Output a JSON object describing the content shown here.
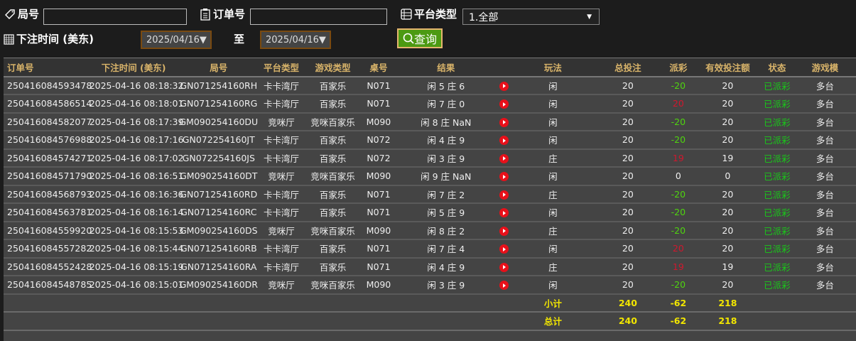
{
  "filters": {
    "round_label": "局号",
    "round_value": "",
    "order_label": "订单号",
    "order_value": "",
    "platform_label": "平台类型",
    "platform_value": "1.全部",
    "time_label": "下注时间 (美东)",
    "date_from": "2025/04/16▼",
    "to_label": "至",
    "date_to": "2025/04/16▼",
    "search_label": "查询"
  },
  "columns": [
    "订单号",
    "下注时间 (美东)",
    "局号",
    "平台类型",
    "游戏类型",
    "桌号",
    "结果",
    "",
    "玩法",
    "总投注",
    "派彩",
    "有效投注额",
    "状态",
    "游戏模"
  ],
  "rows": [
    {
      "order": "250416084593478",
      "time": "2025-04-16 08:18:32",
      "round": "GN071254160RH",
      "platform": "卡卡湾厅",
      "game": "百家乐",
      "table": "N071",
      "result": "闲 5 庄 6",
      "play": "闲",
      "bet": "20",
      "payout": "-20",
      "payout_color": "neg",
      "valid": "20",
      "status": "已派彩",
      "mode": "多台"
    },
    {
      "order": "250416084586514",
      "time": "2025-04-16 08:18:01",
      "round": "GN071254160RG",
      "platform": "卡卡湾厅",
      "game": "百家乐",
      "table": "N071",
      "result": "闲 7 庄 0",
      "play": "闲",
      "bet": "20",
      "payout": "20",
      "payout_color": "pos",
      "valid": "20",
      "status": "已派彩",
      "mode": "多台"
    },
    {
      "order": "250416084582077",
      "time": "2025-04-16 08:17:39",
      "round": "GM090254160DU",
      "platform": "竞咪厅",
      "game": "竞咪百家乐",
      "table": "M090",
      "result": "闲 8 庄 NaN",
      "play": "闲",
      "bet": "20",
      "payout": "-20",
      "payout_color": "neg",
      "valid": "20",
      "status": "已派彩",
      "mode": "多台"
    },
    {
      "order": "250416084576988",
      "time": "2025-04-16 08:17:16",
      "round": "GN072254160JT",
      "platform": "卡卡湾厅",
      "game": "百家乐",
      "table": "N072",
      "result": "闲 4 庄 9",
      "play": "闲",
      "bet": "20",
      "payout": "-20",
      "payout_color": "neg",
      "valid": "20",
      "status": "已派彩",
      "mode": "多台"
    },
    {
      "order": "250416084574271",
      "time": "2025-04-16 08:17:02",
      "round": "GN072254160JS",
      "platform": "卡卡湾厅",
      "game": "百家乐",
      "table": "N072",
      "result": "闲 3 庄 9",
      "play": "庄",
      "bet": "20",
      "payout": "19",
      "payout_color": "pos",
      "valid": "19",
      "status": "已派彩",
      "mode": "多台"
    },
    {
      "order": "250416084571790",
      "time": "2025-04-16 08:16:51",
      "round": "GM090254160DT",
      "platform": "竞咪厅",
      "game": "竞咪百家乐",
      "table": "M090",
      "result": "闲 9 庄 NaN",
      "play": "闲",
      "bet": "20",
      "payout": "0",
      "payout_color": "zero",
      "valid": "0",
      "status": "已派彩",
      "mode": "多台"
    },
    {
      "order": "250416084568793",
      "time": "2025-04-16 08:16:36",
      "round": "GN071254160RD",
      "platform": "卡卡湾厅",
      "game": "百家乐",
      "table": "N071",
      "result": "闲 7 庄 2",
      "play": "庄",
      "bet": "20",
      "payout": "-20",
      "payout_color": "neg",
      "valid": "20",
      "status": "已派彩",
      "mode": "多台"
    },
    {
      "order": "250416084563781",
      "time": "2025-04-16 08:16:14",
      "round": "GN071254160RC",
      "platform": "卡卡湾厅",
      "game": "百家乐",
      "table": "N071",
      "result": "闲 5 庄 9",
      "play": "闲",
      "bet": "20",
      "payout": "-20",
      "payout_color": "neg",
      "valid": "20",
      "status": "已派彩",
      "mode": "多台"
    },
    {
      "order": "250416084559920",
      "time": "2025-04-16 08:15:53",
      "round": "GM090254160DS",
      "platform": "竞咪厅",
      "game": "竞咪百家乐",
      "table": "M090",
      "result": "闲 8 庄 2",
      "play": "庄",
      "bet": "20",
      "payout": "-20",
      "payout_color": "neg",
      "valid": "20",
      "status": "已派彩",
      "mode": "多台"
    },
    {
      "order": "250416084557282",
      "time": "2025-04-16 08:15:44",
      "round": "GN071254160RB",
      "platform": "卡卡湾厅",
      "game": "百家乐",
      "table": "N071",
      "result": "闲 7 庄 4",
      "play": "闲",
      "bet": "20",
      "payout": "20",
      "payout_color": "pos",
      "valid": "20",
      "status": "已派彩",
      "mode": "多台"
    },
    {
      "order": "250416084552428",
      "time": "2025-04-16 08:15:19",
      "round": "GN071254160RA",
      "platform": "卡卡湾厅",
      "game": "百家乐",
      "table": "N071",
      "result": "闲 4 庄 9",
      "play": "庄",
      "bet": "20",
      "payout": "19",
      "payout_color": "pos",
      "valid": "19",
      "status": "已派彩",
      "mode": "多台"
    },
    {
      "order": "250416084548785",
      "time": "2025-04-16 08:15:01",
      "round": "GM090254160DR",
      "platform": "竞咪厅",
      "game": "竞咪百家乐",
      "table": "M090",
      "result": "闲 3 庄 9",
      "play": "闲",
      "bet": "20",
      "payout": "-20",
      "payout_color": "neg",
      "valid": "20",
      "status": "已派彩",
      "mode": "多台"
    }
  ],
  "subtotal": {
    "label": "小计",
    "bet": "240",
    "payout": "-62",
    "valid": "218"
  },
  "total": {
    "label": "总计",
    "bet": "240",
    "payout": "-62",
    "valid": "218"
  }
}
